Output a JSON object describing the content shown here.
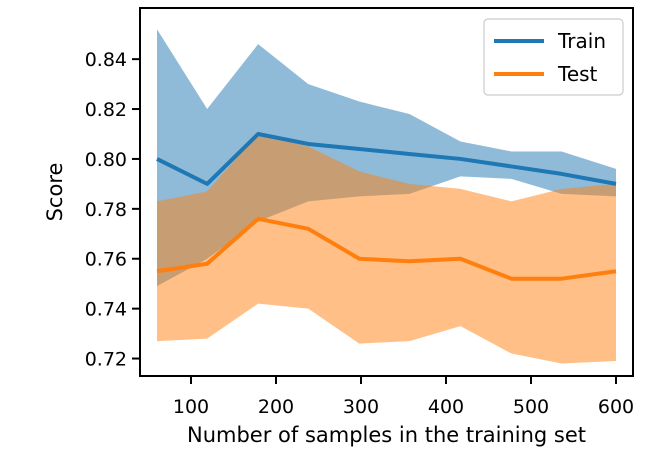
{
  "chart_data": {
    "type": "line",
    "xlabel": "Number of samples in the training set",
    "ylabel": "Score",
    "xlim": [
      40,
      620
    ],
    "ylim": [
      0.713,
      0.8605
    ],
    "x_ticks": [
      100,
      200,
      300,
      400,
      500,
      600
    ],
    "y_ticks": [
      0.72,
      0.74,
      0.76,
      0.78,
      0.8,
      0.82,
      0.84
    ],
    "x_tick_labels": [
      "100",
      "200",
      "300",
      "400",
      "500",
      "600"
    ],
    "y_tick_labels": [
      "0.72",
      "0.74",
      "0.76",
      "0.78",
      "0.80",
      "0.82",
      "0.84"
    ],
    "legend_position": "top-right",
    "grid": false,
    "x": [
      60,
      119,
      179,
      238,
      298,
      357,
      417,
      477,
      536,
      600
    ],
    "series": [
      {
        "name": "Train",
        "color": "#1f77b4",
        "band_color": "#1f77b4",
        "values": [
          0.8,
          0.79,
          0.81,
          0.806,
          0.804,
          0.802,
          0.8,
          0.797,
          0.794,
          0.79
        ],
        "upper": [
          0.852,
          0.82,
          0.846,
          0.83,
          0.823,
          0.818,
          0.807,
          0.803,
          0.803,
          0.796
        ],
        "lower": [
          0.749,
          0.76,
          0.775,
          0.783,
          0.785,
          0.786,
          0.793,
          0.792,
          0.786,
          0.785
        ]
      },
      {
        "name": "Test",
        "color": "#ff7f0e",
        "band_color": "#ff7f0e",
        "values": [
          0.755,
          0.758,
          0.776,
          0.772,
          0.76,
          0.759,
          0.76,
          0.752,
          0.752,
          0.755
        ],
        "upper": [
          0.783,
          0.787,
          0.81,
          0.805,
          0.795,
          0.79,
          0.788,
          0.783,
          0.788,
          0.79
        ],
        "lower": [
          0.727,
          0.728,
          0.742,
          0.74,
          0.726,
          0.727,
          0.733,
          0.722,
          0.718,
          0.719
        ]
      }
    ]
  }
}
